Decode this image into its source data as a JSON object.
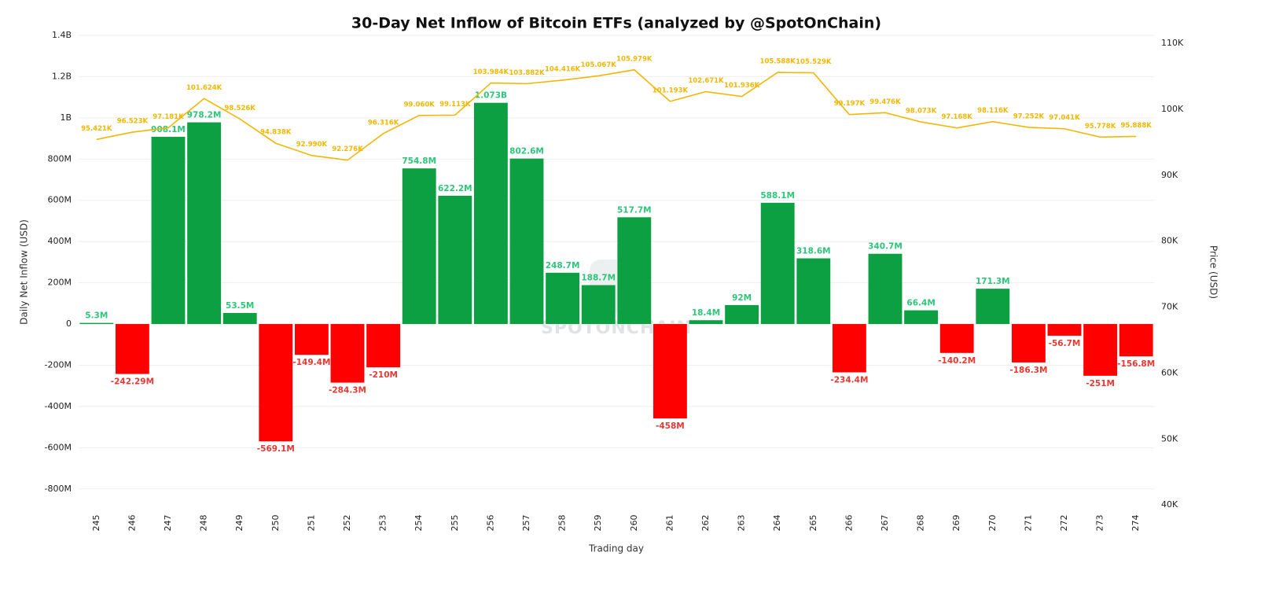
{
  "chart_data": {
    "type": "bar",
    "title": "30-Day Net Inflow of Bitcoin ETFs (analyzed by @SpotOnChain)",
    "x_label": "Trading day",
    "y_label": "Daily Net Inflow (USD)",
    "y2_label": "Price (USD)",
    "watermark": "SPOTONCHAIN",
    "x": [
      245,
      246,
      247,
      248,
      249,
      250,
      251,
      252,
      253,
      254,
      255,
      256,
      257,
      258,
      259,
      260,
      261,
      262,
      263,
      264,
      265,
      266,
      267,
      268,
      269,
      270,
      271,
      272,
      273,
      274
    ],
    "xlim": [
      244.5,
      274.5
    ],
    "ylim": [
      -900000000,
      1400000000
    ],
    "yticks": [
      {
        "value": 1400000000,
        "label": "1.4B"
      },
      {
        "value": 1200000000,
        "label": "1.2B"
      },
      {
        "value": 1000000000,
        "label": "1B"
      },
      {
        "value": 800000000,
        "label": "800M"
      },
      {
        "value": 600000000,
        "label": "600M"
      },
      {
        "value": 400000000,
        "label": "400M"
      },
      {
        "value": 200000000,
        "label": "200M"
      },
      0,
      {
        "value": -200000000,
        "label": "-200M"
      },
      {
        "value": -400000000,
        "label": "-400M"
      },
      {
        "value": -600000000,
        "label": "-600M"
      },
      {
        "value": -800000000,
        "label": "-800M"
      }
    ],
    "y2lim": [
      39300,
      111200
    ],
    "y2ticks": [
      {
        "value": 110000,
        "label": "110K"
      },
      {
        "value": 100000,
        "label": "100K"
      },
      {
        "value": 90000,
        "label": "90K"
      },
      {
        "value": 80000,
        "label": "80K"
      },
      {
        "value": 70000,
        "label": "70K"
      },
      {
        "value": 60000,
        "label": "60K"
      },
      {
        "value": 50000,
        "label": "50K"
      },
      {
        "value": 40000,
        "label": "40K"
      }
    ],
    "grid": true,
    "series": [
      {
        "type": "bar",
        "positive_color": "#0ca043",
        "negative_color": "#ff0000",
        "positive_label_color": "#2fc57a",
        "negative_label_color": "#e53935",
        "values": [
          5300000,
          -242290000,
          908100000,
          978200000,
          53500000,
          -569100000,
          -149400000,
          -284300000,
          -210000000,
          754800000,
          622200000,
          1073000000,
          802600000,
          248700000,
          188700000,
          517700000,
          -458000000,
          18400000,
          92000000,
          588100000,
          318600000,
          -234400000,
          340700000,
          66400000,
          -140200000,
          171300000,
          -186300000,
          -56700000,
          -251000000,
          -156800000
        ],
        "value_labels": [
          "5.3M",
          "-242.29M",
          "908.1M",
          "978.2M",
          "53.5M",
          "-569.1M",
          "-149.4M",
          "-284.3M",
          "-210M",
          "754.8M",
          "622.2M",
          "1.073B",
          "802.6M",
          "248.7M",
          "188.7M",
          "517.7M",
          "-458M",
          "18.4M",
          "92M",
          "588.1M",
          "318.6M",
          "-234.4M",
          "340.7M",
          "66.4M",
          "-140.2M",
          "171.3M",
          "-186.3M",
          "-56.7M",
          "-251M",
          "-156.8M"
        ]
      },
      {
        "type": "line",
        "axis": "y2",
        "color": "#f2b705",
        "values": [
          95421,
          96523,
          97181,
          101624,
          98526,
          94838,
          92990,
          92276,
          96316,
          99060,
          99113,
          103984,
          103882,
          104416,
          105067,
          105979,
          101193,
          102671,
          101936,
          105588,
          105529,
          99197,
          99476,
          98073,
          97168,
          98116,
          97252,
          97041,
          95778,
          95888
        ],
        "value_labels": [
          "95.421K",
          "96.523K",
          "97.181K",
          "101.624K",
          "98.526K",
          "94.838K",
          "92.990K",
          "92.276K",
          "96.316K",
          "99.060K",
          "99.113K",
          "103.984K",
          "103.882K",
          "104.416K",
          "105.067K",
          "105.979K",
          "101.193K",
          "102.671K",
          "101.936K",
          "105.588K",
          "105.529K",
          "99.197K",
          "99.476K",
          "98.073K",
          "97.168K",
          "98.116K",
          "97.252K",
          "97.041K",
          "95.778K",
          "95.888K"
        ]
      }
    ]
  }
}
